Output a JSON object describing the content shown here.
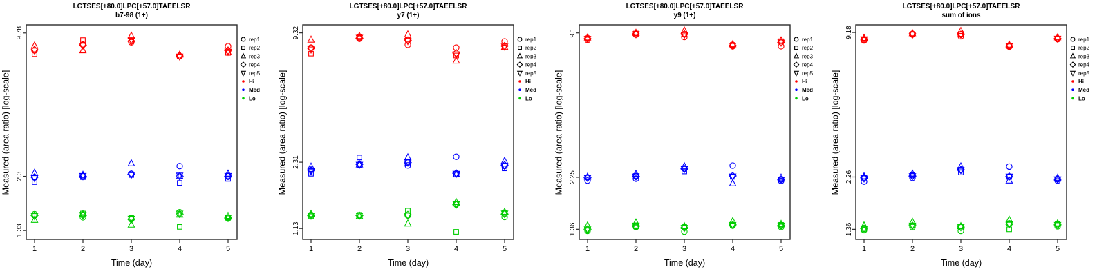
{
  "figure": {
    "xlabel": "Time (day)",
    "ylabel": "Measured (area ratio) [log-scale]",
    "x_ticks": [
      "1",
      "2",
      "3",
      "4",
      "5"
    ],
    "colors": {
      "Hi": "#FF0000",
      "Med": "#0000FF",
      "Lo": "#00CC00",
      "frame": "#2b2b2b",
      "text": "#000000"
    },
    "legend": {
      "rep_items": [
        {
          "label": "rep1",
          "marker": "circle"
        },
        {
          "label": "rep2",
          "marker": "square"
        },
        {
          "label": "rep3",
          "marker": "triangle-up"
        },
        {
          "label": "rep4",
          "marker": "diamond"
        },
        {
          "label": "rep5",
          "marker": "triangle-down"
        }
      ],
      "level_items": [
        {
          "label": "Hi",
          "color": "#FF0000"
        },
        {
          "label": "Med",
          "color": "#0000FF"
        },
        {
          "label": "Lo",
          "color": "#00CC00"
        }
      ]
    }
  },
  "chart_data": [
    {
      "type": "scatter",
      "title": "LGTSES[+80.0]LPC[+57.0]TAEELSR",
      "subtitle": "b7-98 (1+)",
      "xlabel": "Time (day)",
      "ylabel": "Measured (area ratio) [log-scale]",
      "x": [
        1,
        2,
        3,
        4,
        5
      ],
      "y_scale": "log10",
      "y_ticks": [
        9.78,
        2.3,
        1.33
      ],
      "y_log_range": [
        0.085,
        1.026
      ],
      "grid": false,
      "legend_position": "right-top",
      "series": [
        {
          "level": "Hi",
          "reps": {
            "rep1": [
              8.2,
              8.7,
              8.9,
              7.75,
              8.55
            ],
            "rep2": [
              7.9,
              9.1,
              9.05,
              7.7,
              8.0
            ],
            "rep3": [
              8.6,
              8.2,
              9.5,
              7.85,
              8.05
            ],
            "rep4": [
              8.25,
              8.65,
              9.0,
              7.75,
              8.2
            ],
            "rep5": [
              8.2,
              8.6,
              9.1,
              7.72,
              8.1
            ]
          }
        },
        {
          "level": "Med",
          "reps": {
            "rep1": [
              2.28,
              2.3,
              2.36,
              2.55,
              2.3
            ],
            "rep2": [
              2.17,
              2.28,
              2.33,
              2.15,
              2.24
            ],
            "rep3": [
              2.38,
              2.33,
              2.62,
              2.3,
              2.36
            ],
            "rep4": [
              2.28,
              2.3,
              2.35,
              2.3,
              2.3
            ],
            "rep5": [
              2.26,
              2.31,
              2.34,
              2.32,
              2.31
            ]
          }
        },
        {
          "level": "Lo",
          "reps": {
            "rep1": [
              1.57,
              1.52,
              1.49,
              1.6,
              1.5
            ],
            "rep2": [
              1.55,
              1.58,
              1.51,
              1.38,
              1.52
            ],
            "rep3": [
              1.48,
              1.57,
              1.41,
              1.56,
              1.54
            ],
            "rep4": [
              1.55,
              1.55,
              1.49,
              1.57,
              1.51
            ],
            "rep5": [
              1.54,
              1.56,
              1.5,
              1.58,
              1.52
            ]
          }
        }
      ]
    },
    {
      "type": "scatter",
      "title": "LGTSES[+80.0]LPC[+57.0]TAEELSR",
      "subtitle": "y7 (1+)",
      "xlabel": "Time (day)",
      "ylabel": "Measured (area ratio) [log-scale]",
      "x": [
        1,
        2,
        3,
        4,
        5
      ],
      "y_scale": "log10",
      "y_ticks": [
        9.32,
        2.31,
        1.13
      ],
      "y_log_range": [
        0.002,
        1.007
      ],
      "grid": false,
      "legend_position": "right-top",
      "series": [
        {
          "level": "Hi",
          "reps": {
            "rep1": [
              7.95,
              8.75,
              8.2,
              7.95,
              8.5
            ],
            "rep2": [
              7.45,
              8.9,
              8.65,
              7.3,
              7.95
            ],
            "rep3": [
              8.65,
              9.0,
              9.15,
              6.9,
              8.0
            ],
            "rep4": [
              7.9,
              8.8,
              8.6,
              7.5,
              8.1
            ],
            "rep5": [
              7.8,
              8.85,
              8.55,
              7.4,
              8.05
            ]
          }
        },
        {
          "level": "Med",
          "reps": {
            "rep1": [
              2.12,
              2.24,
              2.23,
              2.45,
              2.22
            ],
            "rep2": [
              2.04,
              2.43,
              2.28,
              2.02,
              2.16
            ],
            "rep3": [
              2.2,
              2.25,
              2.43,
              2.03,
              2.34
            ],
            "rep4": [
              2.12,
              2.26,
              2.3,
              2.05,
              2.24
            ],
            "rep5": [
              2.1,
              2.25,
              2.32,
              2.04,
              2.22
            ]
          }
        },
        {
          "level": "Lo",
          "reps": {
            "rep1": [
              1.31,
              1.3,
              1.3,
              1.47,
              1.28
            ],
            "rep2": [
              1.29,
              1.31,
              1.37,
              1.09,
              1.34
            ],
            "rep3": [
              1.32,
              1.29,
              1.19,
              1.5,
              1.35
            ],
            "rep4": [
              1.3,
              1.3,
              1.31,
              1.46,
              1.32
            ],
            "rep5": [
              1.3,
              1.3,
              1.3,
              1.47,
              1.33
            ]
          }
        }
      ]
    },
    {
      "type": "scatter",
      "title": "LGTSES[+80.0]LPC[+57.0]TAEELSR",
      "subtitle": "y9 (1+)",
      "xlabel": "Time (day)",
      "ylabel": "Measured (area ratio) [log-scale]",
      "x": [
        1,
        2,
        3,
        4,
        5
      ],
      "y_scale": "log10",
      "y_ticks": [
        9.1,
        2.25,
        1.36
      ],
      "y_log_range": [
        0.091,
        0.993
      ],
      "grid": false,
      "legend_position": "right-top",
      "series": [
        {
          "level": "Hi",
          "reps": {
            "rep1": [
              8.5,
              8.95,
              8.75,
              8.0,
              8.0
            ],
            "rep2": [
              8.65,
              9.05,
              9.0,
              8.1,
              8.4
            ],
            "rep3": [
              8.7,
              9.1,
              9.3,
              8.15,
              8.45
            ],
            "rep4": [
              8.6,
              9.0,
              9.0,
              8.05,
              8.3
            ],
            "rep5": [
              8.6,
              9.0,
              8.95,
              8.05,
              8.3
            ]
          }
        },
        {
          "level": "Med",
          "reps": {
            "rep1": [
              2.18,
              2.22,
              2.45,
              2.52,
              2.17
            ],
            "rep2": [
              2.25,
              2.28,
              2.38,
              2.26,
              2.2
            ],
            "rep3": [
              2.26,
              2.32,
              2.5,
              2.12,
              2.24
            ],
            "rep4": [
              2.24,
              2.27,
              2.44,
              2.28,
              2.2
            ],
            "rep5": [
              2.24,
              2.27,
              2.44,
              2.27,
              2.2
            ]
          }
        },
        {
          "level": "Lo",
          "reps": {
            "rep1": [
              1.34,
              1.39,
              1.33,
              1.41,
              1.39
            ],
            "rep2": [
              1.35,
              1.4,
              1.39,
              1.41,
              1.42
            ],
            "rep3": [
              1.41,
              1.45,
              1.4,
              1.47,
              1.43
            ],
            "rep4": [
              1.36,
              1.4,
              1.38,
              1.42,
              1.41
            ],
            "rep5": [
              1.36,
              1.41,
              1.38,
              1.42,
              1.41
            ]
          }
        }
      ]
    },
    {
      "type": "scatter",
      "title": "LGTSES[+80.0]LPC[+57.0]TAEELSR",
      "subtitle": "sum of ions",
      "xlabel": "Time (day)",
      "ylabel": "Measured (area ratio) [log-scale]",
      "x": [
        1,
        2,
        3,
        4,
        5
      ],
      "y_scale": "log10",
      "y_ticks": [
        9.18,
        2.26,
        1.36
      ],
      "y_log_range": [
        0.091,
        0.995
      ],
      "grid": false,
      "legend_position": "right-top",
      "series": [
        {
          "level": "Hi",
          "reps": {
            "rep1": [
              8.5,
              9.0,
              8.85,
              8.0,
              8.6
            ],
            "rep2": [
              8.55,
              9.05,
              9.05,
              8.05,
              8.65
            ],
            "rep3": [
              8.7,
              9.1,
              9.3,
              8.15,
              8.75
            ],
            "rep4": [
              8.6,
              9.05,
              9.0,
              8.05,
              8.65
            ],
            "rep5": [
              8.6,
              9.0,
              9.0,
              8.05,
              8.65
            ]
          }
        },
        {
          "level": "Med",
          "reps": {
            "rep1": [
              2.16,
              2.24,
              2.42,
              2.5,
              2.18
            ],
            "rep2": [
              2.24,
              2.3,
              2.36,
              2.26,
              2.21
            ],
            "rep3": [
              2.27,
              2.33,
              2.5,
              2.18,
              2.24
            ],
            "rep4": [
              2.24,
              2.28,
              2.42,
              2.27,
              2.21
            ],
            "rep5": [
              2.23,
              2.28,
              2.42,
              2.27,
              2.21
            ]
          }
        },
        {
          "level": "Lo",
          "reps": {
            "rep1": [
              1.35,
              1.39,
              1.34,
              1.44,
              1.4
            ],
            "rep2": [
              1.36,
              1.41,
              1.4,
              1.36,
              1.43
            ],
            "rep3": [
              1.41,
              1.46,
              1.4,
              1.49,
              1.44
            ],
            "rep4": [
              1.37,
              1.41,
              1.39,
              1.43,
              1.42
            ],
            "rep5": [
              1.37,
              1.41,
              1.39,
              1.43,
              1.42
            ]
          }
        }
      ]
    }
  ]
}
